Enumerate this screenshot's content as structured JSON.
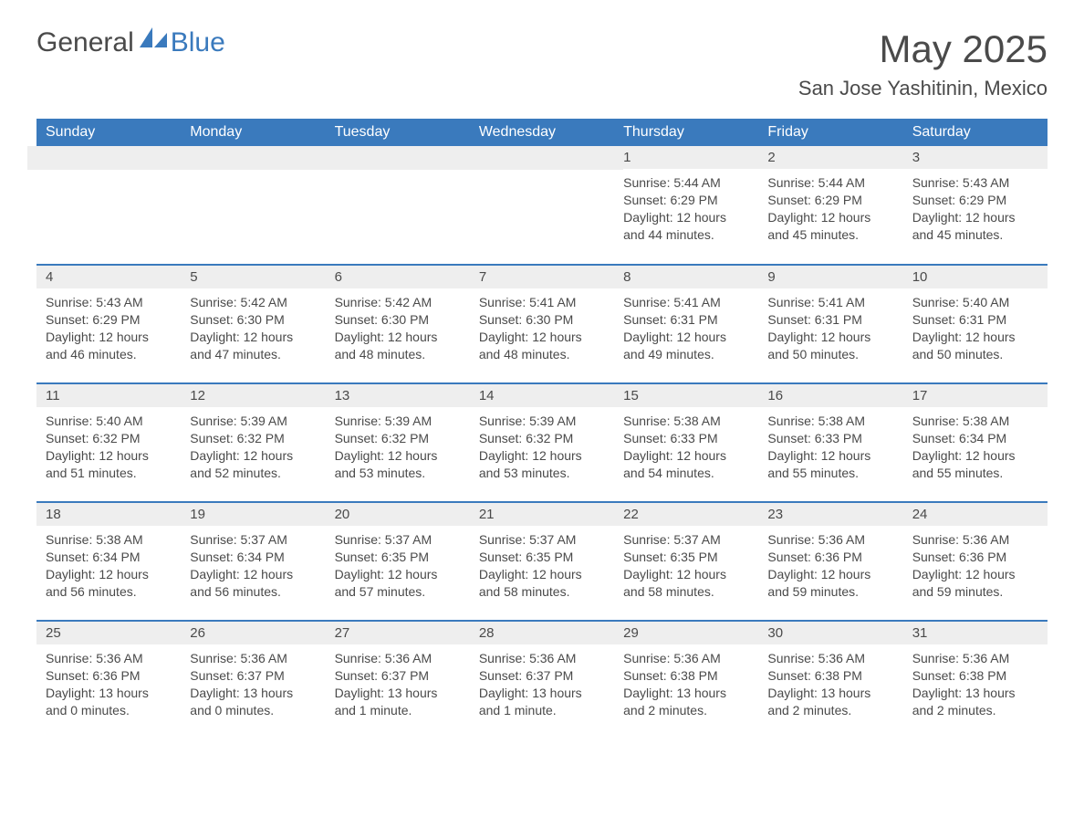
{
  "logo": {
    "text_general": "General",
    "text_blue": "Blue"
  },
  "colors": {
    "brand_blue": "#3a7abd",
    "header_bg": "#3a7abd",
    "day_header_bg": "#eeeeee",
    "text": "#4a4a4a",
    "white": "#ffffff"
  },
  "title": "May 2025",
  "location": "San Jose Yashitinin, Mexico",
  "weekdays": [
    "Sunday",
    "Monday",
    "Tuesday",
    "Wednesday",
    "Thursday",
    "Friday",
    "Saturday"
  ],
  "weeks": [
    [
      null,
      null,
      null,
      null,
      {
        "day": "1",
        "sunrise": "Sunrise: 5:44 AM",
        "sunset": "Sunset: 6:29 PM",
        "daylight1": "Daylight: 12 hours",
        "daylight2": "and 44 minutes."
      },
      {
        "day": "2",
        "sunrise": "Sunrise: 5:44 AM",
        "sunset": "Sunset: 6:29 PM",
        "daylight1": "Daylight: 12 hours",
        "daylight2": "and 45 minutes."
      },
      {
        "day": "3",
        "sunrise": "Sunrise: 5:43 AM",
        "sunset": "Sunset: 6:29 PM",
        "daylight1": "Daylight: 12 hours",
        "daylight2": "and 45 minutes."
      }
    ],
    [
      {
        "day": "4",
        "sunrise": "Sunrise: 5:43 AM",
        "sunset": "Sunset: 6:29 PM",
        "daylight1": "Daylight: 12 hours",
        "daylight2": "and 46 minutes."
      },
      {
        "day": "5",
        "sunrise": "Sunrise: 5:42 AM",
        "sunset": "Sunset: 6:30 PM",
        "daylight1": "Daylight: 12 hours",
        "daylight2": "and 47 minutes."
      },
      {
        "day": "6",
        "sunrise": "Sunrise: 5:42 AM",
        "sunset": "Sunset: 6:30 PM",
        "daylight1": "Daylight: 12 hours",
        "daylight2": "and 48 minutes."
      },
      {
        "day": "7",
        "sunrise": "Sunrise: 5:41 AM",
        "sunset": "Sunset: 6:30 PM",
        "daylight1": "Daylight: 12 hours",
        "daylight2": "and 48 minutes."
      },
      {
        "day": "8",
        "sunrise": "Sunrise: 5:41 AM",
        "sunset": "Sunset: 6:31 PM",
        "daylight1": "Daylight: 12 hours",
        "daylight2": "and 49 minutes."
      },
      {
        "day": "9",
        "sunrise": "Sunrise: 5:41 AM",
        "sunset": "Sunset: 6:31 PM",
        "daylight1": "Daylight: 12 hours",
        "daylight2": "and 50 minutes."
      },
      {
        "day": "10",
        "sunrise": "Sunrise: 5:40 AM",
        "sunset": "Sunset: 6:31 PM",
        "daylight1": "Daylight: 12 hours",
        "daylight2": "and 50 minutes."
      }
    ],
    [
      {
        "day": "11",
        "sunrise": "Sunrise: 5:40 AM",
        "sunset": "Sunset: 6:32 PM",
        "daylight1": "Daylight: 12 hours",
        "daylight2": "and 51 minutes."
      },
      {
        "day": "12",
        "sunrise": "Sunrise: 5:39 AM",
        "sunset": "Sunset: 6:32 PM",
        "daylight1": "Daylight: 12 hours",
        "daylight2": "and 52 minutes."
      },
      {
        "day": "13",
        "sunrise": "Sunrise: 5:39 AM",
        "sunset": "Sunset: 6:32 PM",
        "daylight1": "Daylight: 12 hours",
        "daylight2": "and 53 minutes."
      },
      {
        "day": "14",
        "sunrise": "Sunrise: 5:39 AM",
        "sunset": "Sunset: 6:32 PM",
        "daylight1": "Daylight: 12 hours",
        "daylight2": "and 53 minutes."
      },
      {
        "day": "15",
        "sunrise": "Sunrise: 5:38 AM",
        "sunset": "Sunset: 6:33 PM",
        "daylight1": "Daylight: 12 hours",
        "daylight2": "and 54 minutes."
      },
      {
        "day": "16",
        "sunrise": "Sunrise: 5:38 AM",
        "sunset": "Sunset: 6:33 PM",
        "daylight1": "Daylight: 12 hours",
        "daylight2": "and 55 minutes."
      },
      {
        "day": "17",
        "sunrise": "Sunrise: 5:38 AM",
        "sunset": "Sunset: 6:34 PM",
        "daylight1": "Daylight: 12 hours",
        "daylight2": "and 55 minutes."
      }
    ],
    [
      {
        "day": "18",
        "sunrise": "Sunrise: 5:38 AM",
        "sunset": "Sunset: 6:34 PM",
        "daylight1": "Daylight: 12 hours",
        "daylight2": "and 56 minutes."
      },
      {
        "day": "19",
        "sunrise": "Sunrise: 5:37 AM",
        "sunset": "Sunset: 6:34 PM",
        "daylight1": "Daylight: 12 hours",
        "daylight2": "and 56 minutes."
      },
      {
        "day": "20",
        "sunrise": "Sunrise: 5:37 AM",
        "sunset": "Sunset: 6:35 PM",
        "daylight1": "Daylight: 12 hours",
        "daylight2": "and 57 minutes."
      },
      {
        "day": "21",
        "sunrise": "Sunrise: 5:37 AM",
        "sunset": "Sunset: 6:35 PM",
        "daylight1": "Daylight: 12 hours",
        "daylight2": "and 58 minutes."
      },
      {
        "day": "22",
        "sunrise": "Sunrise: 5:37 AM",
        "sunset": "Sunset: 6:35 PM",
        "daylight1": "Daylight: 12 hours",
        "daylight2": "and 58 minutes."
      },
      {
        "day": "23",
        "sunrise": "Sunrise: 5:36 AM",
        "sunset": "Sunset: 6:36 PM",
        "daylight1": "Daylight: 12 hours",
        "daylight2": "and 59 minutes."
      },
      {
        "day": "24",
        "sunrise": "Sunrise: 5:36 AM",
        "sunset": "Sunset: 6:36 PM",
        "daylight1": "Daylight: 12 hours",
        "daylight2": "and 59 minutes."
      }
    ],
    [
      {
        "day": "25",
        "sunrise": "Sunrise: 5:36 AM",
        "sunset": "Sunset: 6:36 PM",
        "daylight1": "Daylight: 13 hours",
        "daylight2": "and 0 minutes."
      },
      {
        "day": "26",
        "sunrise": "Sunrise: 5:36 AM",
        "sunset": "Sunset: 6:37 PM",
        "daylight1": "Daylight: 13 hours",
        "daylight2": "and 0 minutes."
      },
      {
        "day": "27",
        "sunrise": "Sunrise: 5:36 AM",
        "sunset": "Sunset: 6:37 PM",
        "daylight1": "Daylight: 13 hours",
        "daylight2": "and 1 minute."
      },
      {
        "day": "28",
        "sunrise": "Sunrise: 5:36 AM",
        "sunset": "Sunset: 6:37 PM",
        "daylight1": "Daylight: 13 hours",
        "daylight2": "and 1 minute."
      },
      {
        "day": "29",
        "sunrise": "Sunrise: 5:36 AM",
        "sunset": "Sunset: 6:38 PM",
        "daylight1": "Daylight: 13 hours",
        "daylight2": "and 2 minutes."
      },
      {
        "day": "30",
        "sunrise": "Sunrise: 5:36 AM",
        "sunset": "Sunset: 6:38 PM",
        "daylight1": "Daylight: 13 hours",
        "daylight2": "and 2 minutes."
      },
      {
        "day": "31",
        "sunrise": "Sunrise: 5:36 AM",
        "sunset": "Sunset: 6:38 PM",
        "daylight1": "Daylight: 13 hours",
        "daylight2": "and 2 minutes."
      }
    ]
  ]
}
